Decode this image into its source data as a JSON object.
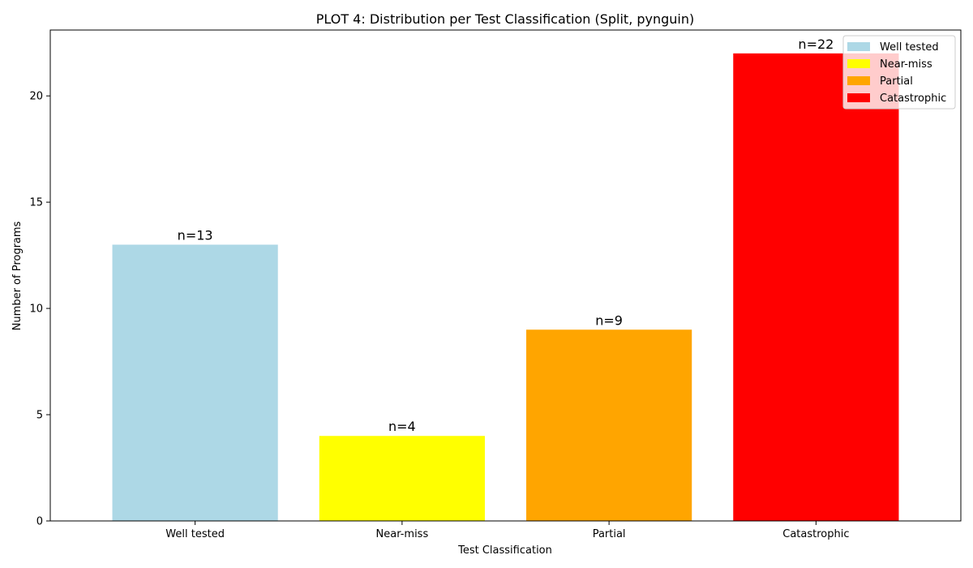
{
  "chart_data": {
    "type": "bar",
    "title": "PLOT 4: Distribution per Test Classification (Split, pynguin)",
    "xlabel": "Test Classification",
    "ylabel": "Number of Programs",
    "categories": [
      "Well tested",
      "Near-miss",
      "Partial",
      "Catastrophic"
    ],
    "values": [
      13,
      4,
      9,
      22
    ],
    "data_labels": [
      "n=13",
      "n=4",
      "n=9",
      "n=22"
    ],
    "colors": [
      "#add8e6",
      "#ffff00",
      "#ffa500",
      "#ff0000"
    ],
    "ylim": [
      0,
      23.1
    ],
    "yticks": [
      0,
      5,
      10,
      15,
      20
    ],
    "grid": false,
    "legend": {
      "position": "top-right",
      "entries": [
        "Well tested",
        "Near-miss",
        "Partial",
        "Catastrophic"
      ]
    }
  }
}
